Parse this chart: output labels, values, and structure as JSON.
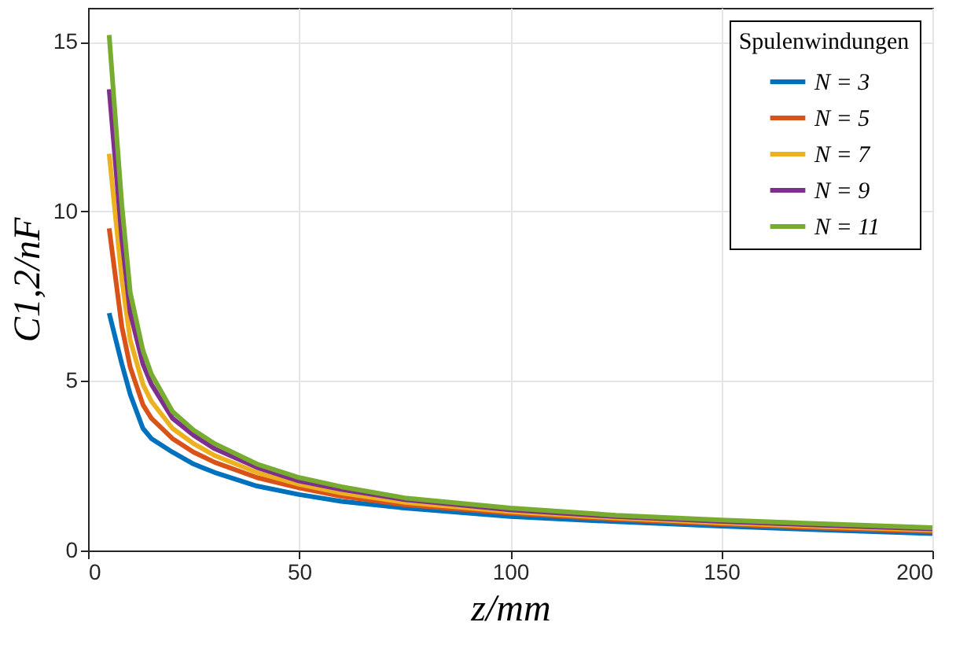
{
  "chart_data": {
    "type": "line",
    "xlabel": "z/mm",
    "ylabel": "C1,2/nF",
    "legend_title": "Spulenwindungen",
    "x": [
      5,
      8,
      10,
      13,
      15,
      20,
      25,
      30,
      40,
      50,
      60,
      75,
      100,
      125,
      150,
      175,
      200
    ],
    "series": [
      {
        "name": "N = 3",
        "color": "#0072bd",
        "values": [
          7.0,
          5.5,
          4.6,
          3.6,
          3.3,
          2.9,
          2.55,
          2.3,
          1.9,
          1.65,
          1.45,
          1.25,
          1.0,
          0.85,
          0.72,
          0.6,
          0.5
        ]
      },
      {
        "name": "N = 5",
        "color": "#d95319",
        "values": [
          9.5,
          6.6,
          5.4,
          4.3,
          3.9,
          3.3,
          2.9,
          2.6,
          2.15,
          1.85,
          1.6,
          1.35,
          1.1,
          0.92,
          0.78,
          0.66,
          0.56
        ]
      },
      {
        "name": "N = 7",
        "color": "#edb120",
        "values": [
          11.7,
          8.0,
          6.2,
          4.9,
          4.4,
          3.6,
          3.15,
          2.8,
          2.3,
          1.95,
          1.7,
          1.42,
          1.15,
          0.96,
          0.82,
          0.7,
          0.6
        ]
      },
      {
        "name": "N = 9",
        "color": "#7e2f8e",
        "values": [
          13.6,
          9.2,
          7.0,
          5.5,
          4.9,
          3.9,
          3.4,
          3.0,
          2.45,
          2.05,
          1.8,
          1.5,
          1.2,
          1.0,
          0.86,
          0.74,
          0.64
        ]
      },
      {
        "name": "N = 11",
        "color": "#77ac30",
        "values": [
          15.2,
          10.2,
          7.6,
          5.9,
          5.2,
          4.1,
          3.55,
          3.15,
          2.55,
          2.15,
          1.88,
          1.55,
          1.25,
          1.04,
          0.9,
          0.78,
          0.67
        ]
      }
    ],
    "xlim": [
      0,
      200
    ],
    "xticks": [
      0,
      50,
      100,
      150,
      200
    ],
    "ylim": [
      0,
      16
    ],
    "yticks": [
      0,
      5,
      10,
      15
    ],
    "grid": true,
    "legend": "top right",
    "line_style": "solid",
    "marker": "none"
  }
}
